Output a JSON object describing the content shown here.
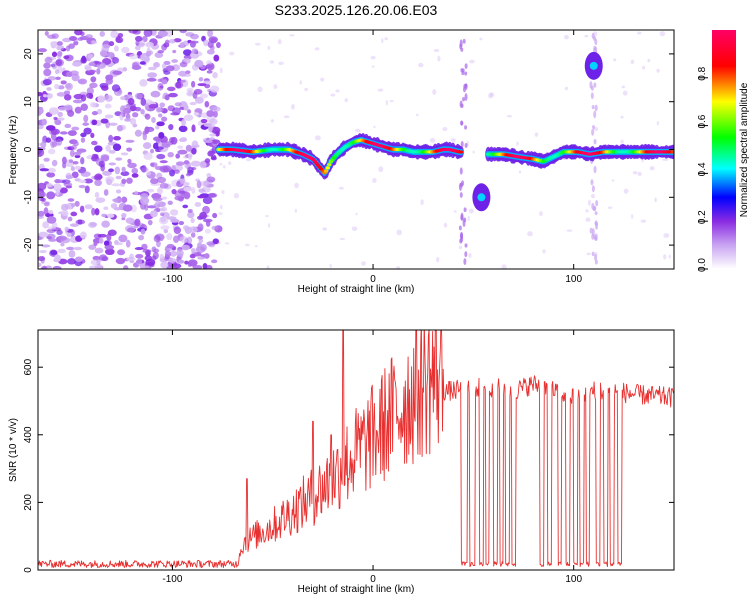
{
  "title": "S233.2025.126.20.06.E03",
  "chart_data": [
    {
      "type": "heatmap",
      "xlabel": "Height of straight line (km)",
      "ylabel": "Frequency (Hz)",
      "xlim": [
        -167,
        150
      ],
      "ylim": [
        -25,
        25
      ],
      "x_ticks": [
        -100,
        0,
        100
      ],
      "y_ticks": [
        -20,
        -10,
        0,
        10,
        20
      ],
      "grid": false,
      "colorbar": {
        "label": "Normalized spectral amplitude",
        "range": [
          0,
          1
        ],
        "ticks": [
          "0.0",
          "0.2",
          "0.4",
          "0.6",
          "0.8"
        ],
        "colors": [
          "#ffffff",
          "#8a2be2",
          "#0000ff",
          "#00ffff",
          "#00ff00",
          "#ffff00",
          "#ff0000",
          "#ff0066"
        ]
      },
      "ridge": [
        [
          -77,
          0.0
        ],
        [
          -70,
          0.0
        ],
        [
          -60,
          -0.5
        ],
        [
          -50,
          0.0
        ],
        [
          -42,
          0.0
        ],
        [
          -35,
          -1.0
        ],
        [
          -30,
          -2.0
        ],
        [
          -27,
          -3.5
        ],
        [
          -24,
          -5.0
        ],
        [
          -21,
          -2.5
        ],
        [
          -18,
          -1.0
        ],
        [
          -14,
          0.5
        ],
        [
          -10,
          1.5
        ],
        [
          -6,
          2.0
        ],
        [
          -2,
          1.5
        ],
        [
          2,
          1.0
        ],
        [
          6,
          0.5
        ],
        [
          10,
          0.0
        ],
        [
          15,
          0.0
        ],
        [
          20,
          -0.5
        ],
        [
          25,
          -0.5
        ],
        [
          30,
          -0.5
        ],
        [
          35,
          0.0
        ],
        [
          38,
          0.0
        ],
        [
          43,
          -0.5
        ],
        [
          58,
          -1.0
        ],
        [
          65,
          -1.0
        ],
        [
          72,
          -1.5
        ],
        [
          80,
          -2.0
        ],
        [
          85,
          -2.5
        ],
        [
          90,
          -1.5
        ],
        [
          95,
          -0.5
        ],
        [
          102,
          -0.5
        ],
        [
          108,
          -1.0
        ],
        [
          115,
          -0.5
        ],
        [
          125,
          -0.5
        ],
        [
          135,
          -0.5
        ],
        [
          142,
          -0.5
        ],
        [
          150,
          -0.5
        ]
      ],
      "features": [
        {
          "x": 54,
          "y": -10,
          "amplitude": 0.25
        },
        {
          "x": 110,
          "y": 17.5,
          "amplitude": 0.3
        }
      ]
    },
    {
      "type": "line",
      "xlabel": "Height of straight line (km)",
      "ylabel": "SNR (10 * v/v)",
      "xlim": [
        -167,
        150
      ],
      "ylim": [
        0,
        710
      ],
      "x_ticks": [
        -100,
        0,
        100
      ],
      "y_ticks": [
        0,
        200,
        400,
        600
      ],
      "grid": false,
      "color": "#e83030",
      "envelope": [
        [
          -167,
          18
        ],
        [
          -80,
          18
        ],
        [
          -68,
          20
        ],
        [
          -65,
          70
        ],
        [
          -60,
          90
        ],
        [
          -50,
          120
        ],
        [
          -40,
          160
        ],
        [
          -30,
          200
        ],
        [
          -22,
          240
        ],
        [
          -15,
          280
        ],
        [
          -8,
          320
        ],
        [
          0,
          360
        ],
        [
          8,
          410
        ],
        [
          15,
          450
        ],
        [
          20,
          480
        ],
        [
          25,
          510
        ],
        [
          32,
          530
        ],
        [
          40,
          530
        ],
        [
          50,
          540
        ],
        [
          60,
          540
        ],
        [
          70,
          530
        ],
        [
          80,
          550
        ],
        [
          90,
          530
        ],
        [
          100,
          510
        ],
        [
          110,
          530
        ],
        [
          120,
          530
        ],
        [
          130,
          520
        ],
        [
          140,
          515
        ],
        [
          150,
          510
        ]
      ],
      "spikes": [
        [
          -63,
          270
        ],
        [
          -15,
          710
        ],
        [
          -21,
          400
        ],
        [
          -30,
          440
        ]
      ],
      "dropouts": [
        [
          44,
          47
        ],
        [
          48,
          51
        ],
        [
          53,
          55
        ],
        [
          56,
          58
        ],
        [
          60,
          62
        ],
        [
          63,
          65
        ],
        [
          66,
          68
        ],
        [
          69,
          71
        ],
        [
          83,
          85
        ],
        [
          87,
          89
        ],
        [
          92,
          94
        ],
        [
          96,
          98
        ],
        [
          100,
          102
        ],
        [
          103,
          105
        ],
        [
          106,
          108
        ],
        [
          111,
          113
        ],
        [
          115,
          117
        ],
        [
          118,
          120
        ],
        [
          122,
          124
        ]
      ]
    }
  ]
}
